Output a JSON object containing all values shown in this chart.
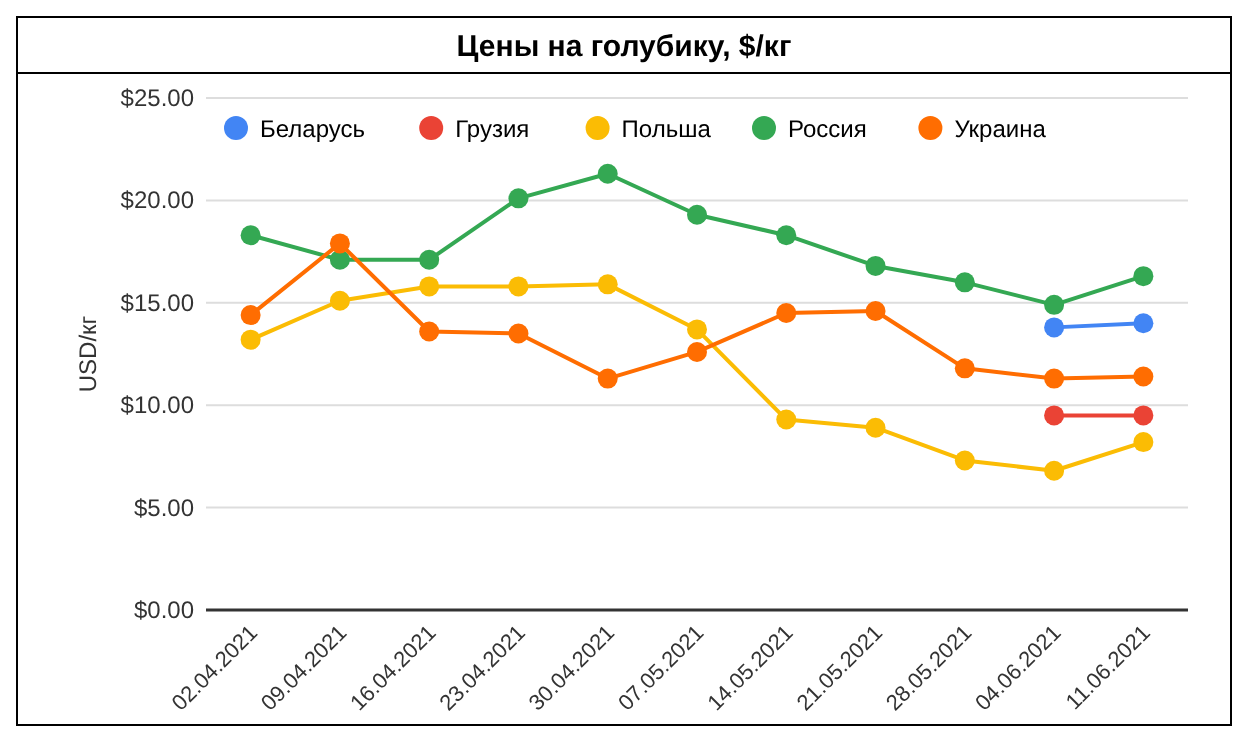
{
  "chart_data": {
    "type": "line",
    "title": "Цены на голубику, $/кг",
    "ylabel": "USD/кг",
    "categories": [
      "02.04.2021",
      "09.04.2021",
      "16.04.2021",
      "23.04.2021",
      "30.04.2021",
      "07.05.2021",
      "14.05.2021",
      "21.05.2021",
      "28.05.2021",
      "04.06.2021",
      "11.06.2021"
    ],
    "series": [
      {
        "name": "Беларусь",
        "color": "#4285f4",
        "values": [
          null,
          null,
          null,
          null,
          null,
          null,
          null,
          null,
          null,
          13.8,
          14.0
        ]
      },
      {
        "name": "Грузия",
        "color": "#ea4335",
        "values": [
          null,
          null,
          null,
          null,
          null,
          null,
          null,
          null,
          null,
          9.5,
          9.5
        ]
      },
      {
        "name": "Польша",
        "color": "#fbbc04",
        "values": [
          13.2,
          15.1,
          15.8,
          15.8,
          15.9,
          13.7,
          9.3,
          8.9,
          7.3,
          6.8,
          8.2
        ]
      },
      {
        "name": "Россия",
        "color": "#34a853",
        "values": [
          18.3,
          17.1,
          17.1,
          20.1,
          21.3,
          19.3,
          18.3,
          16.8,
          16.0,
          14.9,
          16.3
        ]
      },
      {
        "name": "Украина",
        "color": "#ff6d01",
        "values": [
          14.4,
          17.9,
          13.6,
          13.5,
          11.3,
          12.6,
          14.5,
          14.6,
          11.8,
          11.3,
          11.4
        ]
      }
    ],
    "ylim": [
      0,
      25
    ],
    "yticks": [
      {
        "value": 0,
        "label": "$0.00"
      },
      {
        "value": 5,
        "label": "$5.00"
      },
      {
        "value": 10,
        "label": "$10.00"
      },
      {
        "value": 15,
        "label": "$15.00"
      },
      {
        "value": 20,
        "label": "$20.00"
      },
      {
        "value": 25,
        "label": "$25.00"
      }
    ],
    "grid": "y",
    "legend": "top",
    "marker": "circle",
    "line_style": "solid"
  }
}
